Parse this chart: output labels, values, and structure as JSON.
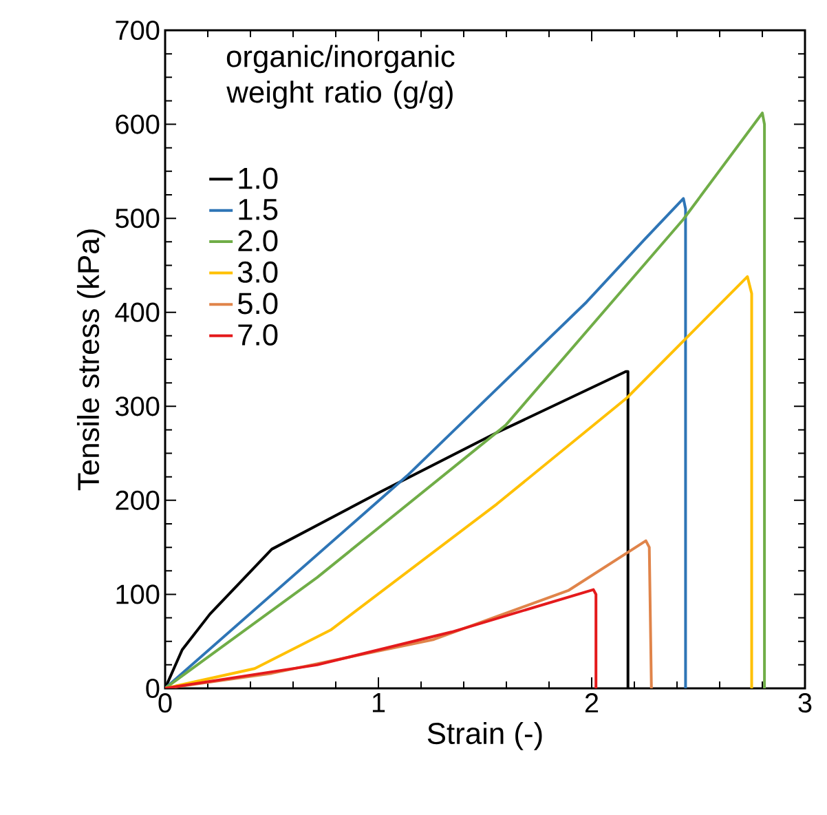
{
  "chart_data": {
    "type": "line",
    "xlabel": "Strain (-)",
    "ylabel": "Tensile stress (kPa)",
    "legend_title": "organic/inorganic weight ratio (g/g)",
    "legend": "top left",
    "marker": "none",
    "line_style": "solid",
    "grid": false,
    "xlim": [
      0,
      3
    ],
    "ylim": [
      0,
      700
    ],
    "xticks": [
      0,
      1,
      2,
      3
    ],
    "yticks": [
      0,
      100,
      200,
      300,
      400,
      500,
      600,
      700
    ],
    "series": [
      {
        "name": "1.0",
        "color": "#000000",
        "x": [
          0,
          0.08,
          0.21,
          0.5,
          1.01,
          1.555,
          2.16,
          2.17,
          2.17
        ],
        "values": [
          0,
          41,
          79,
          148,
          209,
          272,
          337,
          337,
          0
        ]
      },
      {
        "name": "1.5",
        "color": "#2e75b6",
        "x": [
          0,
          1.134,
          1.976,
          2.25,
          2.43,
          2.44,
          2.44
        ],
        "values": [
          0,
          226,
          411,
          478,
          521,
          510,
          0
        ]
      },
      {
        "name": "2.0",
        "color": "#70ad47",
        "x": [
          0,
          0.713,
          1.597,
          2.43,
          2.8,
          2.81,
          2.81
        ],
        "values": [
          0,
          118,
          280,
          499,
          612,
          600,
          0
        ]
      },
      {
        "name": "3.0",
        "color": "#ffc000",
        "x": [
          0,
          0.42,
          0.776,
          1.555,
          2.165,
          2.73,
          2.75,
          2.75
        ],
        "values": [
          0,
          21,
          62,
          196,
          309,
          438,
          420,
          0
        ]
      },
      {
        "name": "5.0",
        "color": "#e0844a",
        "x": [
          0,
          0.5,
          1.26,
          1.89,
          2.254,
          2.27,
          2.28
        ],
        "values": [
          0,
          16,
          52,
          104,
          157,
          150,
          0
        ]
      },
      {
        "name": "7.0",
        "color": "#e41a1c",
        "x": [
          0,
          0.713,
          1.344,
          2.008,
          2.02,
          2.02
        ],
        "values": [
          0,
          25,
          60,
          105,
          100,
          0
        ]
      }
    ]
  }
}
